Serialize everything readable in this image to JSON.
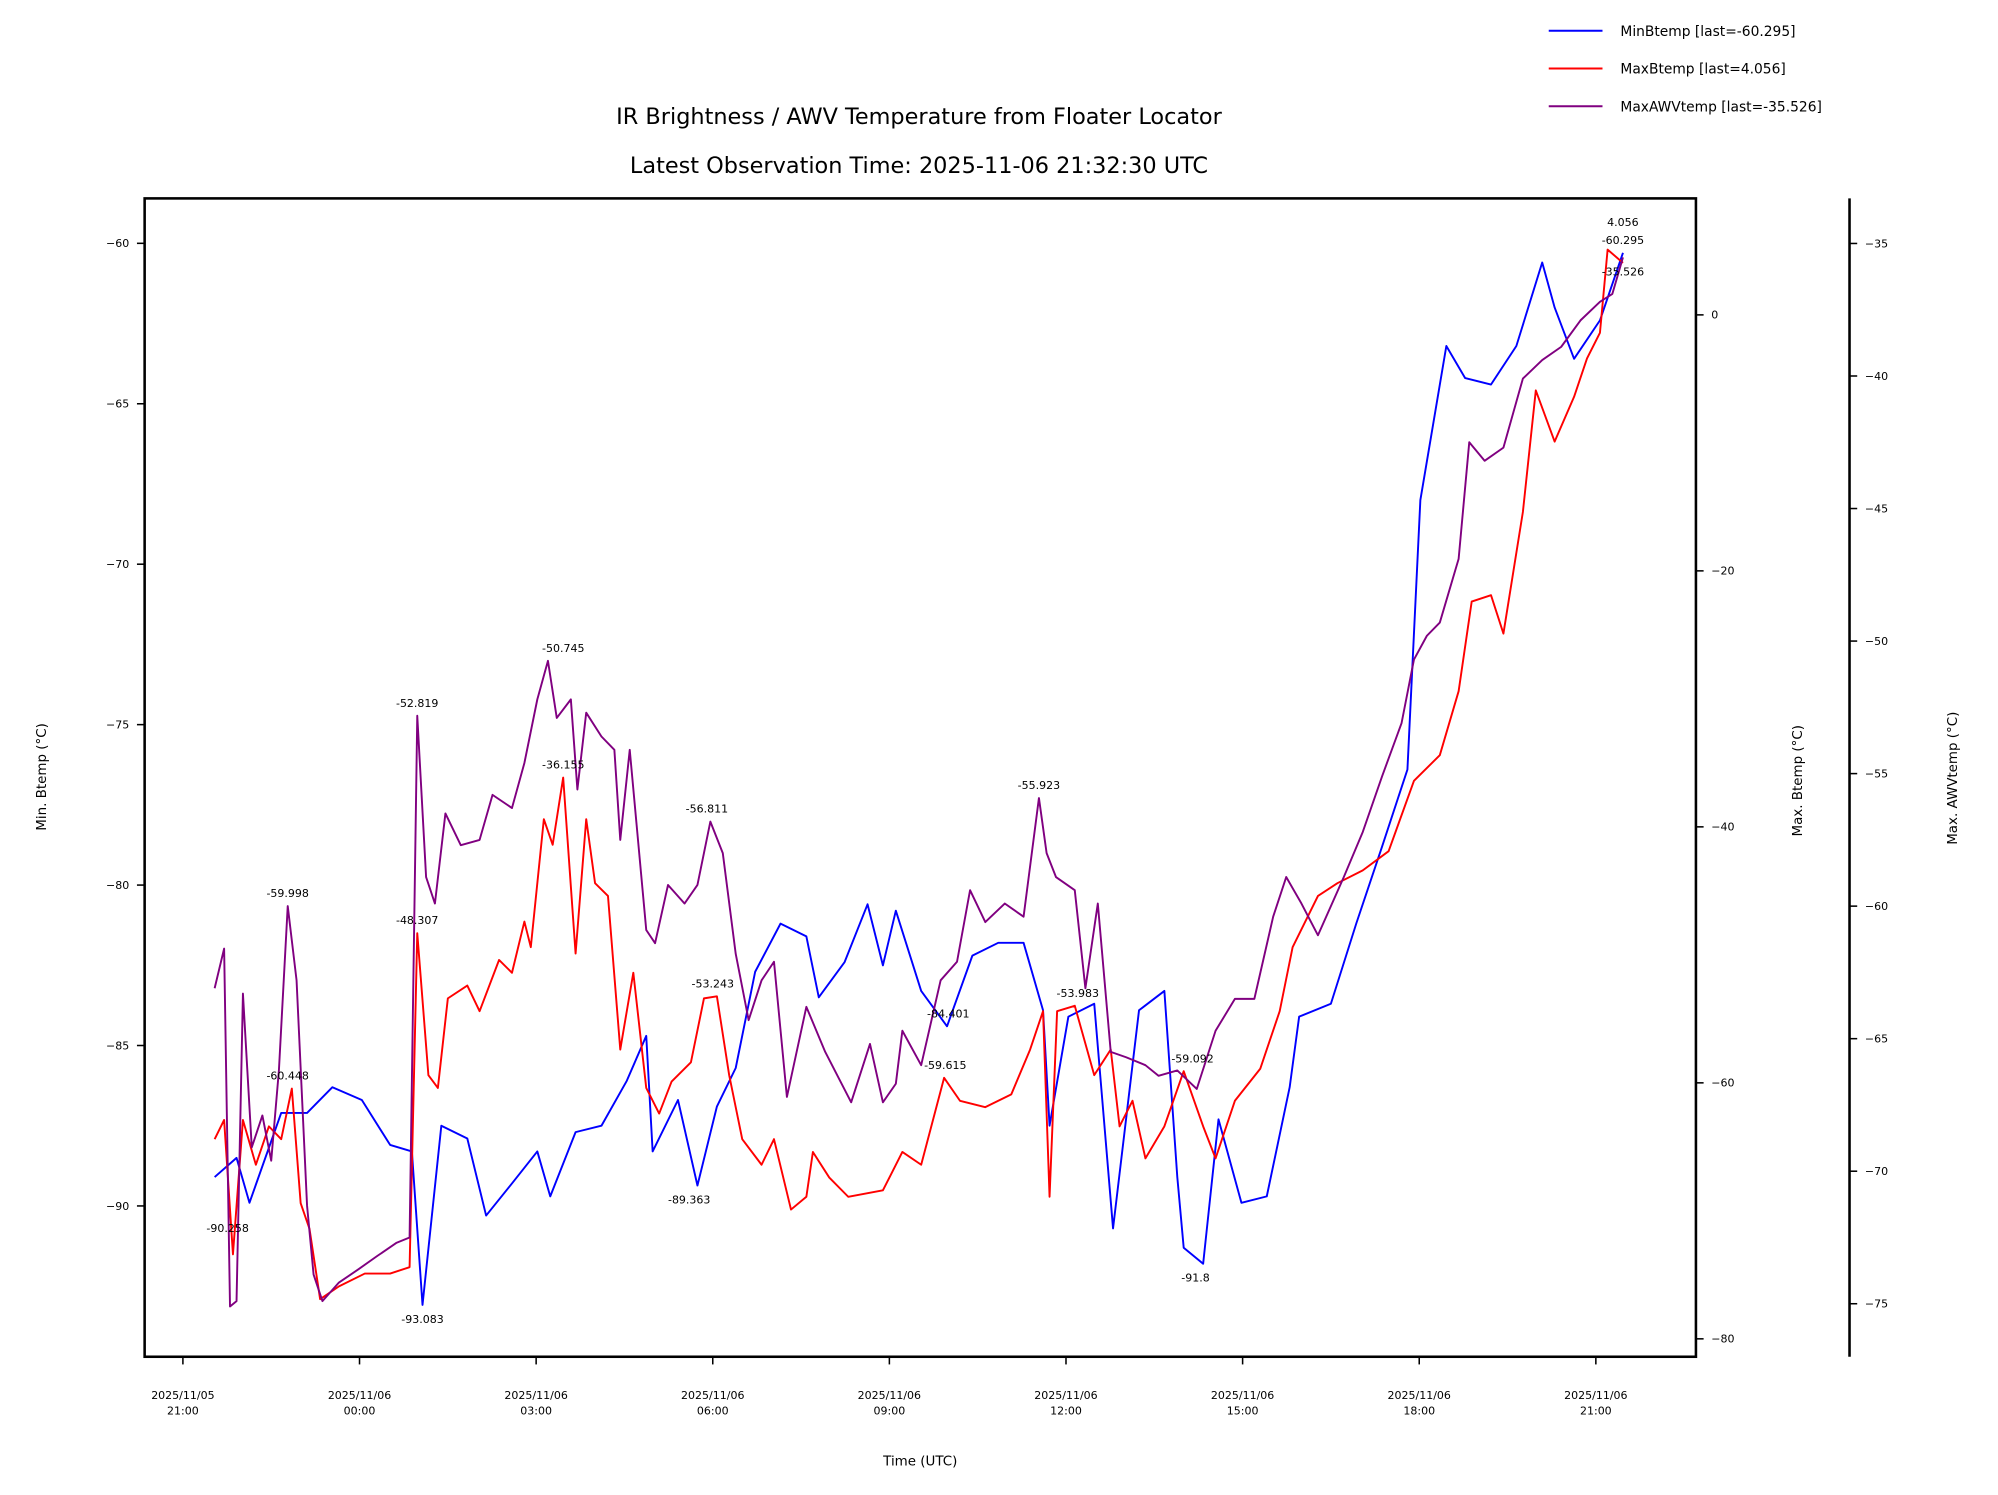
{
  "chart_data": {
    "type": "line",
    "title": "IR Brightness / AWV Temperature from Floater Locator",
    "subtitle": "Latest Observation Time: 2025-11-06 21:32:30 UTC",
    "xlabel": "Time (UTC)",
    "x_units": "hours since 2025/11/05 21:00",
    "xlim": [
      -0.65,
      25.7
    ],
    "x_ticks": [
      {
        "h": 0,
        "line1": "2025/11/05",
        "line2": "21:00"
      },
      {
        "h": 3,
        "line1": "2025/11/06",
        "line2": "00:00"
      },
      {
        "h": 6,
        "line1": "2025/11/06",
        "line2": "03:00"
      },
      {
        "h": 9,
        "line1": "2025/11/06",
        "line2": "06:00"
      },
      {
        "h": 12,
        "line1": "2025/11/06",
        "line2": "09:00"
      },
      {
        "h": 15,
        "line1": "2025/11/06",
        "line2": "12:00"
      },
      {
        "h": 18,
        "line1": "2025/11/06",
        "line2": "15:00"
      },
      {
        "h": 21,
        "line1": "2025/11/06",
        "line2": "18:00"
      },
      {
        "h": 24,
        "line1": "2025/11/06",
        "line2": "21:00"
      }
    ],
    "axes": {
      "left": {
        "label": "Min. Btemp (°C)",
        "ticks": [
          -60,
          -65,
          -70,
          -75,
          -80,
          -85,
          -90
        ],
        "tick_labels": [
          "−60",
          "−65",
          "−70",
          "−75",
          "−80",
          "−85",
          "−90"
        ],
        "ylim": [
          -94.7,
          -58.6
        ]
      },
      "right1": {
        "label": "Max. Btemp (°C)",
        "ticks": [
          0,
          -20,
          -40,
          -60,
          -80
        ],
        "tick_labels": [
          "0",
          "−20",
          "−40",
          "−60",
          "−80"
        ],
        "ylim": [
          -81.4,
          9.1
        ]
      },
      "right2": {
        "label": "Max. AWVtemp (°C)",
        "ticks": [
          -35,
          -40,
          -45,
          -50,
          -55,
          -60,
          -65,
          -70,
          -75
        ],
        "tick_labels": [
          "−35",
          "−40",
          "−45",
          "−50",
          "−55",
          "−60",
          "−65",
          "−70",
          "−75"
        ],
        "ylim": [
          -77.0,
          -33.3
        ]
      }
    },
    "legend": {
      "placement": "top-right outside"
    },
    "series": [
      {
        "name": "MinBtemp",
        "legend_label": "MinBtemp [last=-60.295]",
        "axis": "left",
        "color": "#0000ff",
        "x": [
          0.54,
          0.91,
          1.13,
          1.67,
          2.11,
          2.54,
          3.04,
          3.52,
          3.89,
          4.07,
          4.39,
          4.83,
          5.15,
          5.59,
          6.02,
          6.24,
          6.67,
          7.11,
          7.54,
          7.87,
          7.98,
          8.41,
          8.74,
          9.07,
          9.39,
          9.72,
          10.15,
          10.59,
          10.8,
          11.24,
          11.63,
          11.89,
          12.11,
          12.54,
          12.98,
          13.41,
          13.85,
          14.28,
          14.61,
          14.72,
          15.04,
          15.48,
          15.8,
          16.24,
          16.67,
          16.89,
          17.0,
          17.33,
          17.59,
          17.98,
          18.41,
          18.8,
          18.96,
          19.5,
          19.93,
          20.37,
          20.8,
          21.02,
          21.46,
          21.78,
          22.22,
          22.65,
          23.09,
          23.3,
          23.63,
          24.07,
          24.46
        ],
        "y": [
          -89.1,
          -88.5,
          -89.9,
          -87.1,
          -87.1,
          -86.3,
          -86.7,
          -88.1,
          -88.3,
          -93.083,
          -87.5,
          -87.9,
          -90.3,
          -89.3,
          -88.3,
          -89.7,
          -87.7,
          -87.5,
          -86.1,
          -84.7,
          -88.3,
          -86.7,
          -89.363,
          -86.9,
          -85.7,
          -82.7,
          -81.2,
          -81.6,
          -83.5,
          -82.4,
          -80.6,
          -82.5,
          -80.8,
          -83.3,
          -84.401,
          -82.2,
          -81.8,
          -81.8,
          -83.9,
          -87.5,
          -84.1,
          -83.7,
          -90.7,
          -83.9,
          -83.3,
          -89.1,
          -91.3,
          -91.8,
          -87.3,
          -89.9,
          -89.7,
          -86.3,
          -84.1,
          -83.7,
          -81.2,
          -78.8,
          -76.4,
          -68.0,
          -63.2,
          -64.2,
          -64.4,
          -63.2,
          -60.6,
          -62.0,
          -63.6,
          -62.4,
          -60.295
        ]
      },
      {
        "name": "MaxBtemp",
        "legend_label": "MaxBtemp [last=4.056]",
        "axis": "right1",
        "color": "#ff0000",
        "x": [
          0.54,
          0.7,
          0.85,
          1.02,
          1.24,
          1.46,
          1.67,
          1.85,
          2.0,
          2.15,
          2.33,
          2.65,
          3.09,
          3.52,
          3.85,
          3.98,
          4.17,
          4.33,
          4.5,
          4.83,
          5.04,
          5.37,
          5.59,
          5.8,
          5.91,
          6.13,
          6.28,
          6.46,
          6.67,
          6.85,
          7.0,
          7.22,
          7.43,
          7.65,
          7.87,
          8.09,
          8.3,
          8.63,
          8.85,
          9.07,
          9.28,
          9.5,
          9.83,
          10.04,
          10.33,
          10.59,
          10.7,
          10.98,
          11.3,
          11.89,
          12.22,
          12.54,
          12.93,
          13.2,
          13.63,
          14.07,
          14.39,
          14.61,
          14.72,
          14.85,
          15.15,
          15.48,
          15.76,
          15.91,
          16.13,
          16.35,
          16.67,
          17.0,
          17.33,
          17.54,
          17.87,
          18.3,
          18.63,
          18.85,
          19.28,
          19.61,
          20.04,
          20.48,
          20.91,
          21.35,
          21.67,
          21.89,
          22.22,
          22.43,
          22.76,
          22.98,
          23.3,
          23.63,
          23.85,
          24.07,
          24.2,
          24.46
        ],
        "y": [
          -64.4,
          -62.9,
          -73.4,
          -62.9,
          -66.4,
          -63.4,
          -64.4,
          -60.448,
          -69.4,
          -71.4,
          -76.9,
          -75.9,
          -74.9,
          -74.9,
          -74.4,
          -48.307,
          -59.4,
          -60.4,
          -53.4,
          -52.4,
          -54.4,
          -50.4,
          -51.4,
          -47.4,
          -49.4,
          -39.4,
          -41.4,
          -36.155,
          -49.9,
          -39.4,
          -44.4,
          -45.4,
          -57.4,
          -51.4,
          -60.4,
          -62.4,
          -59.9,
          -58.4,
          -53.4,
          -53.243,
          -59.4,
          -64.4,
          -66.4,
          -64.4,
          -69.9,
          -68.9,
          -65.4,
          -67.4,
          -68.9,
          -68.4,
          -65.4,
          -66.4,
          -59.615,
          -61.4,
          -61.9,
          -60.9,
          -57.4,
          -54.4,
          -68.9,
          -54.4,
          -53.983,
          -59.4,
          -57.4,
          -63.4,
          -61.4,
          -65.9,
          -63.4,
          -59.092,
          -63.4,
          -65.9,
          -61.4,
          -58.9,
          -54.4,
          -49.4,
          -45.4,
          -44.4,
          -43.4,
          -41.9,
          -36.4,
          -34.4,
          -29.4,
          -22.4,
          -21.9,
          -24.9,
          -15.4,
          -5.9,
          -9.9,
          -6.4,
          -3.4,
          -1.4,
          5.1,
          4.056
        ]
      },
      {
        "name": "MaxAWVtemp",
        "legend_label": "MaxAWVtemp [last=-35.526]",
        "axis": "right2",
        "color": "#800080",
        "x": [
          0.54,
          0.7,
          0.8,
          0.91,
          1.02,
          1.17,
          1.35,
          1.5,
          1.63,
          1.78,
          1.93,
          2.11,
          2.22,
          2.37,
          2.65,
          2.98,
          3.3,
          3.63,
          3.85,
          3.98,
          4.13,
          4.28,
          4.46,
          4.72,
          5.04,
          5.26,
          5.59,
          5.8,
          6.02,
          6.2,
          6.35,
          6.59,
          6.7,
          6.85,
          7.11,
          7.33,
          7.43,
          7.59,
          7.87,
          8.02,
          8.24,
          8.52,
          8.74,
          8.96,
          9.17,
          9.39,
          9.61,
          9.83,
          10.04,
          10.26,
          10.59,
          10.91,
          11.35,
          11.67,
          11.89,
          12.11,
          12.22,
          12.54,
          12.87,
          13.15,
          13.37,
          13.63,
          13.96,
          14.28,
          14.54,
          14.67,
          14.83,
          15.15,
          15.33,
          15.54,
          15.76,
          16.02,
          16.35,
          16.57,
          16.89,
          17.22,
          17.54,
          17.87,
          18.2,
          18.52,
          18.74,
          19.0,
          19.28,
          19.72,
          20.04,
          20.37,
          20.7,
          20.91,
          21.13,
          21.35,
          21.67,
          21.85,
          22.11,
          22.43,
          22.76,
          23.09,
          23.41,
          23.74,
          24.07,
          24.28,
          24.46
        ],
        "y": [
          -63.1,
          -61.6,
          -75.1,
          -74.9,
          -63.3,
          -69.1,
          -67.9,
          -69.6,
          -66.2,
          -59.998,
          -62.8,
          -71.3,
          -73.9,
          -74.9,
          -74.2,
          -73.7,
          -73.2,
          -72.7,
          -72.5,
          -52.819,
          -58.9,
          -59.9,
          -56.5,
          -57.7,
          -57.5,
          -55.8,
          -56.3,
          -54.6,
          -52.2,
          -50.745,
          -52.9,
          -52.2,
          -55.6,
          -52.7,
          -53.6,
          -54.1,
          -57.5,
          -54.1,
          -60.9,
          -61.4,
          -59.2,
          -59.9,
          -59.2,
          -56.811,
          -58.0,
          -61.8,
          -64.3,
          -62.8,
          -62.1,
          -67.2,
          -63.8,
          -65.5,
          -67.4,
          -65.2,
          -67.4,
          -66.7,
          -64.7,
          -66.0,
          -62.8,
          -62.1,
          -59.4,
          -60.6,
          -59.9,
          -60.4,
          -55.923,
          -58.0,
          -58.9,
          -59.4,
          -63.1,
          -59.9,
          -65.5,
          -65.7,
          -66.0,
          -66.4,
          -66.2,
          -66.9,
          -64.7,
          -63.5,
          -63.5,
          -60.4,
          -58.9,
          -59.9,
          -61.1,
          -58.9,
          -57.2,
          -55.1,
          -53.1,
          -50.7,
          -49.8,
          -49.3,
          -46.9,
          -42.5,
          -43.2,
          -42.7,
          -40.1,
          -39.4,
          -38.9,
          -37.9,
          -37.2,
          -36.9,
          -35.526
        ]
      }
    ],
    "annotations": [
      {
        "text": "-90.258",
        "series": 0,
        "h": 0.76,
        "v": -90.258,
        "pos": "below"
      },
      {
        "text": "-59.998",
        "series": 2,
        "h": 1.78,
        "v": -59.998,
        "pos": "above"
      },
      {
        "text": "-60.448",
        "series": 1,
        "h": 1.78,
        "v": -60.448,
        "pos": "above"
      },
      {
        "text": "-52.819",
        "series": 2,
        "h": 3.98,
        "v": -52.819,
        "pos": "above"
      },
      {
        "text": "-48.307",
        "series": 1,
        "h": 3.98,
        "v": -48.307,
        "pos": "above"
      },
      {
        "text": "-93.083",
        "series": 0,
        "h": 4.07,
        "v": -93.083,
        "pos": "below"
      },
      {
        "text": "-50.745",
        "series": 2,
        "h": 6.46,
        "v": -50.745,
        "pos": "above"
      },
      {
        "text": "-36.155",
        "series": 1,
        "h": 6.46,
        "v": -36.155,
        "pos": "above"
      },
      {
        "text": "-56.811",
        "series": 2,
        "h": 8.9,
        "v": -56.811,
        "pos": "above"
      },
      {
        "text": "-53.243",
        "series": 1,
        "h": 9.0,
        "v": -53.243,
        "pos": "above"
      },
      {
        "text": "-89.363",
        "series": 0,
        "h": 8.6,
        "v": -89.363,
        "pos": "below"
      },
      {
        "text": "-84.401",
        "series": 0,
        "h": 13.0,
        "v": -84.401,
        "pos": "above"
      },
      {
        "text": "-59.615",
        "series": 1,
        "h": 12.95,
        "v": -59.615,
        "pos": "above"
      },
      {
        "text": "-55.923",
        "series": 2,
        "h": 14.54,
        "v": -55.923,
        "pos": "above"
      },
      {
        "text": "-53.983",
        "series": 1,
        "h": 15.2,
        "v": -53.983,
        "pos": "above"
      },
      {
        "text": "-59.092",
        "series": 1,
        "h": 17.15,
        "v": -59.092,
        "pos": "above"
      },
      {
        "text": "-91.8",
        "series": 0,
        "h": 17.2,
        "v": -91.8,
        "pos": "below"
      },
      {
        "text": "-60.295",
        "series": 0,
        "h": 24.46,
        "v": -60.295,
        "pos": "above"
      },
      {
        "text": "4.056",
        "series": 1,
        "h": 24.46,
        "v": 4.056,
        "pos": "above"
      },
      {
        "text": "-35.526",
        "series": 2,
        "h": 24.46,
        "v": -35.526,
        "pos": "above"
      }
    ]
  }
}
